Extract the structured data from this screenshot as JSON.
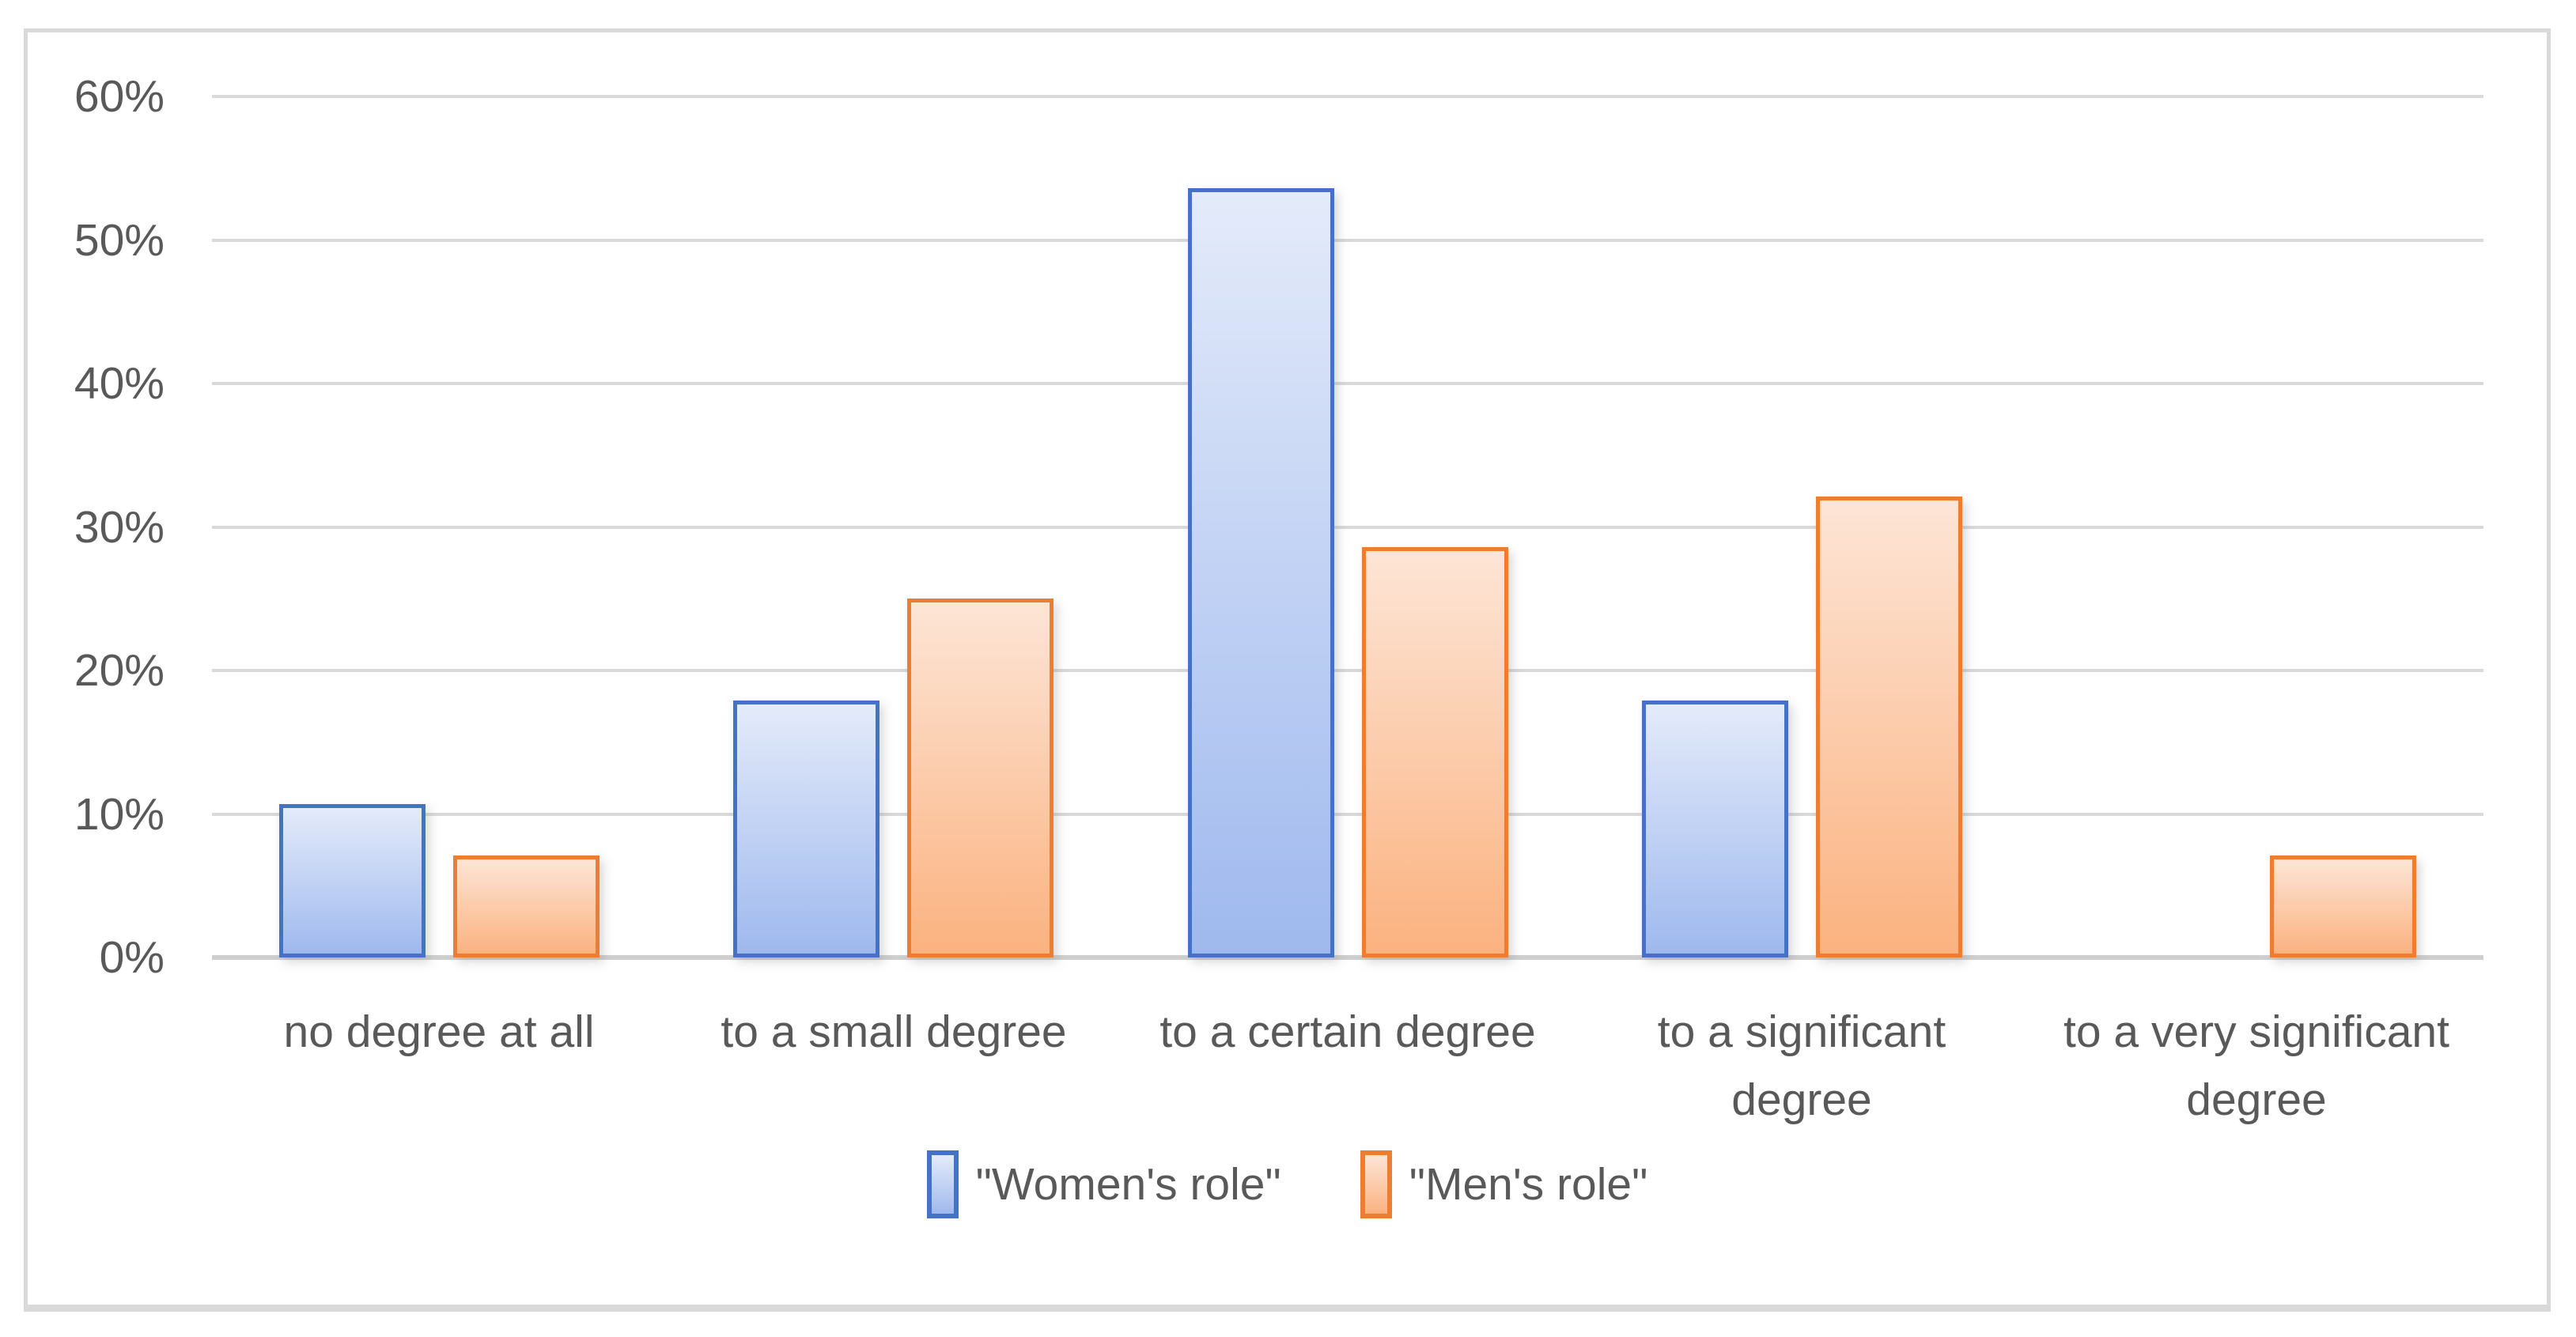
{
  "chart_data": {
    "type": "bar",
    "title": "",
    "xlabel": "",
    "ylabel": "",
    "categories": [
      "no degree at all",
      "to a small degree",
      "to a certain degree",
      "to a significant degree",
      "to a very significant degree"
    ],
    "category_lines": [
      [
        "no degree at all"
      ],
      [
        "to a small degree"
      ],
      [
        "to a certain degree"
      ],
      [
        "to a significant",
        "degree"
      ],
      [
        "to a very significant",
        "degree"
      ]
    ],
    "series": [
      {
        "name": "\"Women's role\"",
        "values": [
          10.7,
          17.9,
          53.6,
          17.9,
          0
        ],
        "border_color": "#4472C4",
        "fill_top": "#E4EBFA",
        "fill_bottom": "#9FB9EE"
      },
      {
        "name": "\"Men's role\"",
        "values": [
          7.1,
          25.0,
          28.6,
          32.1,
          7.1
        ],
        "border_color": "#ED7D31",
        "fill_top": "#FDE5D6",
        "fill_bottom": "#FBB280"
      }
    ],
    "unit": "%",
    "y_ticks": [
      "0%",
      "10%",
      "20%",
      "30%",
      "40%",
      "50%",
      "60%"
    ],
    "ylim": [
      0,
      60
    ],
    "y_tick_step": 10,
    "grid": true,
    "legend_position": "bottom",
    "axis_text_color": "#595959",
    "gridline_color": "#D9D9D9",
    "plot_background": "#FFFFFF"
  }
}
